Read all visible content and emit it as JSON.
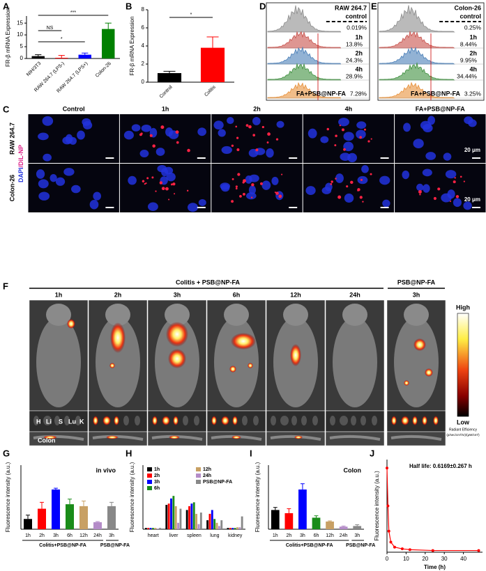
{
  "panel_labels": [
    "A",
    "B",
    "C",
    "D",
    "E",
    "F",
    "G",
    "H",
    "I",
    "J"
  ],
  "chart_data": [
    {
      "type": "bar",
      "ylabel": "FR-β mRNA Expression",
      "categories": [
        "NIH/3T3",
        "RAW 264.7 (LPS-)",
        "RAW 264.7 (LPS+)",
        "Colon-26"
      ],
      "values": [
        1.0,
        0.3,
        1.6,
        12.5
      ],
      "errors": [
        0.6,
        1.0,
        0.7,
        2.5
      ],
      "colors": [
        "#000000",
        "#ff0000",
        "#0000ff",
        "#008000"
      ],
      "ylim": [
        0,
        18
      ],
      "yticks": [
        0,
        5,
        10,
        15
      ],
      "annotations": [
        "NS",
        "*",
        "***"
      ]
    },
    {
      "type": "bar",
      "ylabel": "FR-β mRNA Expression",
      "categories": [
        "Control",
        "Colitis"
      ],
      "values": [
        1.0,
        3.8
      ],
      "errors": [
        0.2,
        1.2
      ],
      "colors": [
        "#000000",
        "#ff0000"
      ],
      "ylim": [
        0,
        8
      ],
      "yticks": [
        0,
        2,
        4,
        6,
        8
      ],
      "annotations": [
        "*"
      ]
    },
    {
      "type": "bar",
      "ylabel": "Fluorescence intensity (a.u.)",
      "categories": [
        "1h",
        "2h",
        "3h",
        "6h",
        "12h",
        "24h",
        "3h"
      ],
      "values": [
        16,
        32,
        62,
        39,
        36,
        11,
        36
      ],
      "errors": [
        6,
        10,
        2,
        8,
        8,
        1,
        6
      ],
      "colors": [
        "#000000",
        "#ff0000",
        "#0000ff",
        "#1a8c1a",
        "#c8a064",
        "#b48cc8",
        "#888888"
      ],
      "ylim": [
        0,
        100
      ],
      "group_labels": [
        "Colitis+PSB@NP-FA",
        "PSB@NP-FA"
      ],
      "annotations": [
        "in vivo"
      ]
    },
    {
      "type": "grouped_bar",
      "ylabel": "Fluorescence intensity (a.u.)",
      "categories": [
        "heart",
        "liver",
        "spleen",
        "lung",
        "kidney"
      ],
      "series": [
        {
          "name": "1h",
          "color": "#000000",
          "values": [
            2,
            38,
            30,
            14,
            2
          ]
        },
        {
          "name": "2h",
          "color": "#ff0000",
          "values": [
            2,
            40,
            36,
            24,
            2
          ]
        },
        {
          "name": "3h",
          "color": "#0000ff",
          "values": [
            2,
            48,
            40,
            30,
            2
          ]
        },
        {
          "name": "6h",
          "color": "#1a8c1a",
          "values": [
            2,
            52,
            42,
            16,
            2
          ]
        },
        {
          "name": "12h",
          "color": "#c8a064",
          "values": [
            2,
            36,
            24,
            10,
            3
          ]
        },
        {
          "name": "24h",
          "color": "#b48cc8",
          "values": [
            1,
            10,
            8,
            5,
            3
          ]
        },
        {
          "name": "PSB@NP-FA",
          "color": "#888888",
          "values": [
            2,
            32,
            26,
            14,
            20
          ]
        }
      ],
      "ylim": [
        0,
        100
      ]
    },
    {
      "type": "bar",
      "ylabel": "Fluorescence intensity (a.u.)",
      "categories": [
        "1h",
        "2h",
        "3h",
        "6h",
        "12h",
        "24h",
        "3h"
      ],
      "values": [
        30,
        25,
        62,
        18,
        12,
        4,
        5
      ],
      "errors": [
        4,
        7,
        9,
        3,
        1,
        1,
        2
      ],
      "colors": [
        "#000000",
        "#ff0000",
        "#0000ff",
        "#1a8c1a",
        "#c8a064",
        "#b48cc8",
        "#888888"
      ],
      "ylim": [
        0,
        100
      ],
      "group_labels": [
        "Colitis+PSB@NP-FA",
        "PSB@NP-FA"
      ],
      "annotations": [
        "Colon"
      ]
    },
    {
      "type": "line",
      "ylabel": "Fluorescence intensity (a.u.)",
      "xlabel": "Time (h)",
      "x": [
        0,
        0.5,
        1,
        2,
        4,
        8,
        12,
        24,
        48
      ],
      "values": [
        100,
        55,
        25,
        12,
        6,
        4,
        3,
        2,
        2
      ],
      "xlim": [
        0,
        50
      ],
      "xticks": [
        0,
        10,
        20,
        30,
        40
      ],
      "ylim": [
        0,
        110
      ],
      "color": "#ff0000",
      "annotations": [
        "Half life: 0.6169±0.267 h"
      ]
    }
  ],
  "flow": [
    {
      "title": "RAW 264.7",
      "rows": [
        {
          "name": "control",
          "value": "0.019%"
        },
        {
          "name": "1h",
          "value": "13.8%"
        },
        {
          "name": "2h",
          "value": "24.3%"
        },
        {
          "name": "4h",
          "value": "28.9%"
        },
        {
          "name": "FA+PSB@NP-FA",
          "value": "7.28%"
        }
      ]
    },
    {
      "title": "Colon-26",
      "rows": [
        {
          "name": "control",
          "value": "0.25%"
        },
        {
          "name": "1h",
          "value": "8.44%"
        },
        {
          "name": "2h",
          "value": "9.95%"
        },
        {
          "name": "4h",
          "value": "34.44%"
        },
        {
          "name": "FA+PSB@NP-FA",
          "value": "3.25%"
        }
      ]
    }
  ],
  "microscopy": {
    "columns": [
      "Control",
      "1h",
      "2h",
      "4h",
      "FA+PSB@NP-FA"
    ],
    "rows": [
      "RAW 264.7",
      "Colon-26"
    ],
    "stain_dapi": "DAPI",
    "stain_dil": "/DiL-NP",
    "scale": "20 μm"
  },
  "imaging": {
    "group1": "Colitis + PSB@NP-FA",
    "group2": "PSB@NP-FA",
    "times": [
      "1h",
      "2h",
      "3h",
      "6h",
      "12h",
      "24h",
      "3h"
    ],
    "organs": [
      "H",
      "Li",
      "S",
      "Lu",
      "K"
    ],
    "colon": "Colon",
    "colorbar_high": "High",
    "colorbar_low": "Low",
    "colorbar_title": "Radiant Efficiency",
    "colorbar_units": "(p/sec/cm²/sr)/(μW/cm²)"
  }
}
